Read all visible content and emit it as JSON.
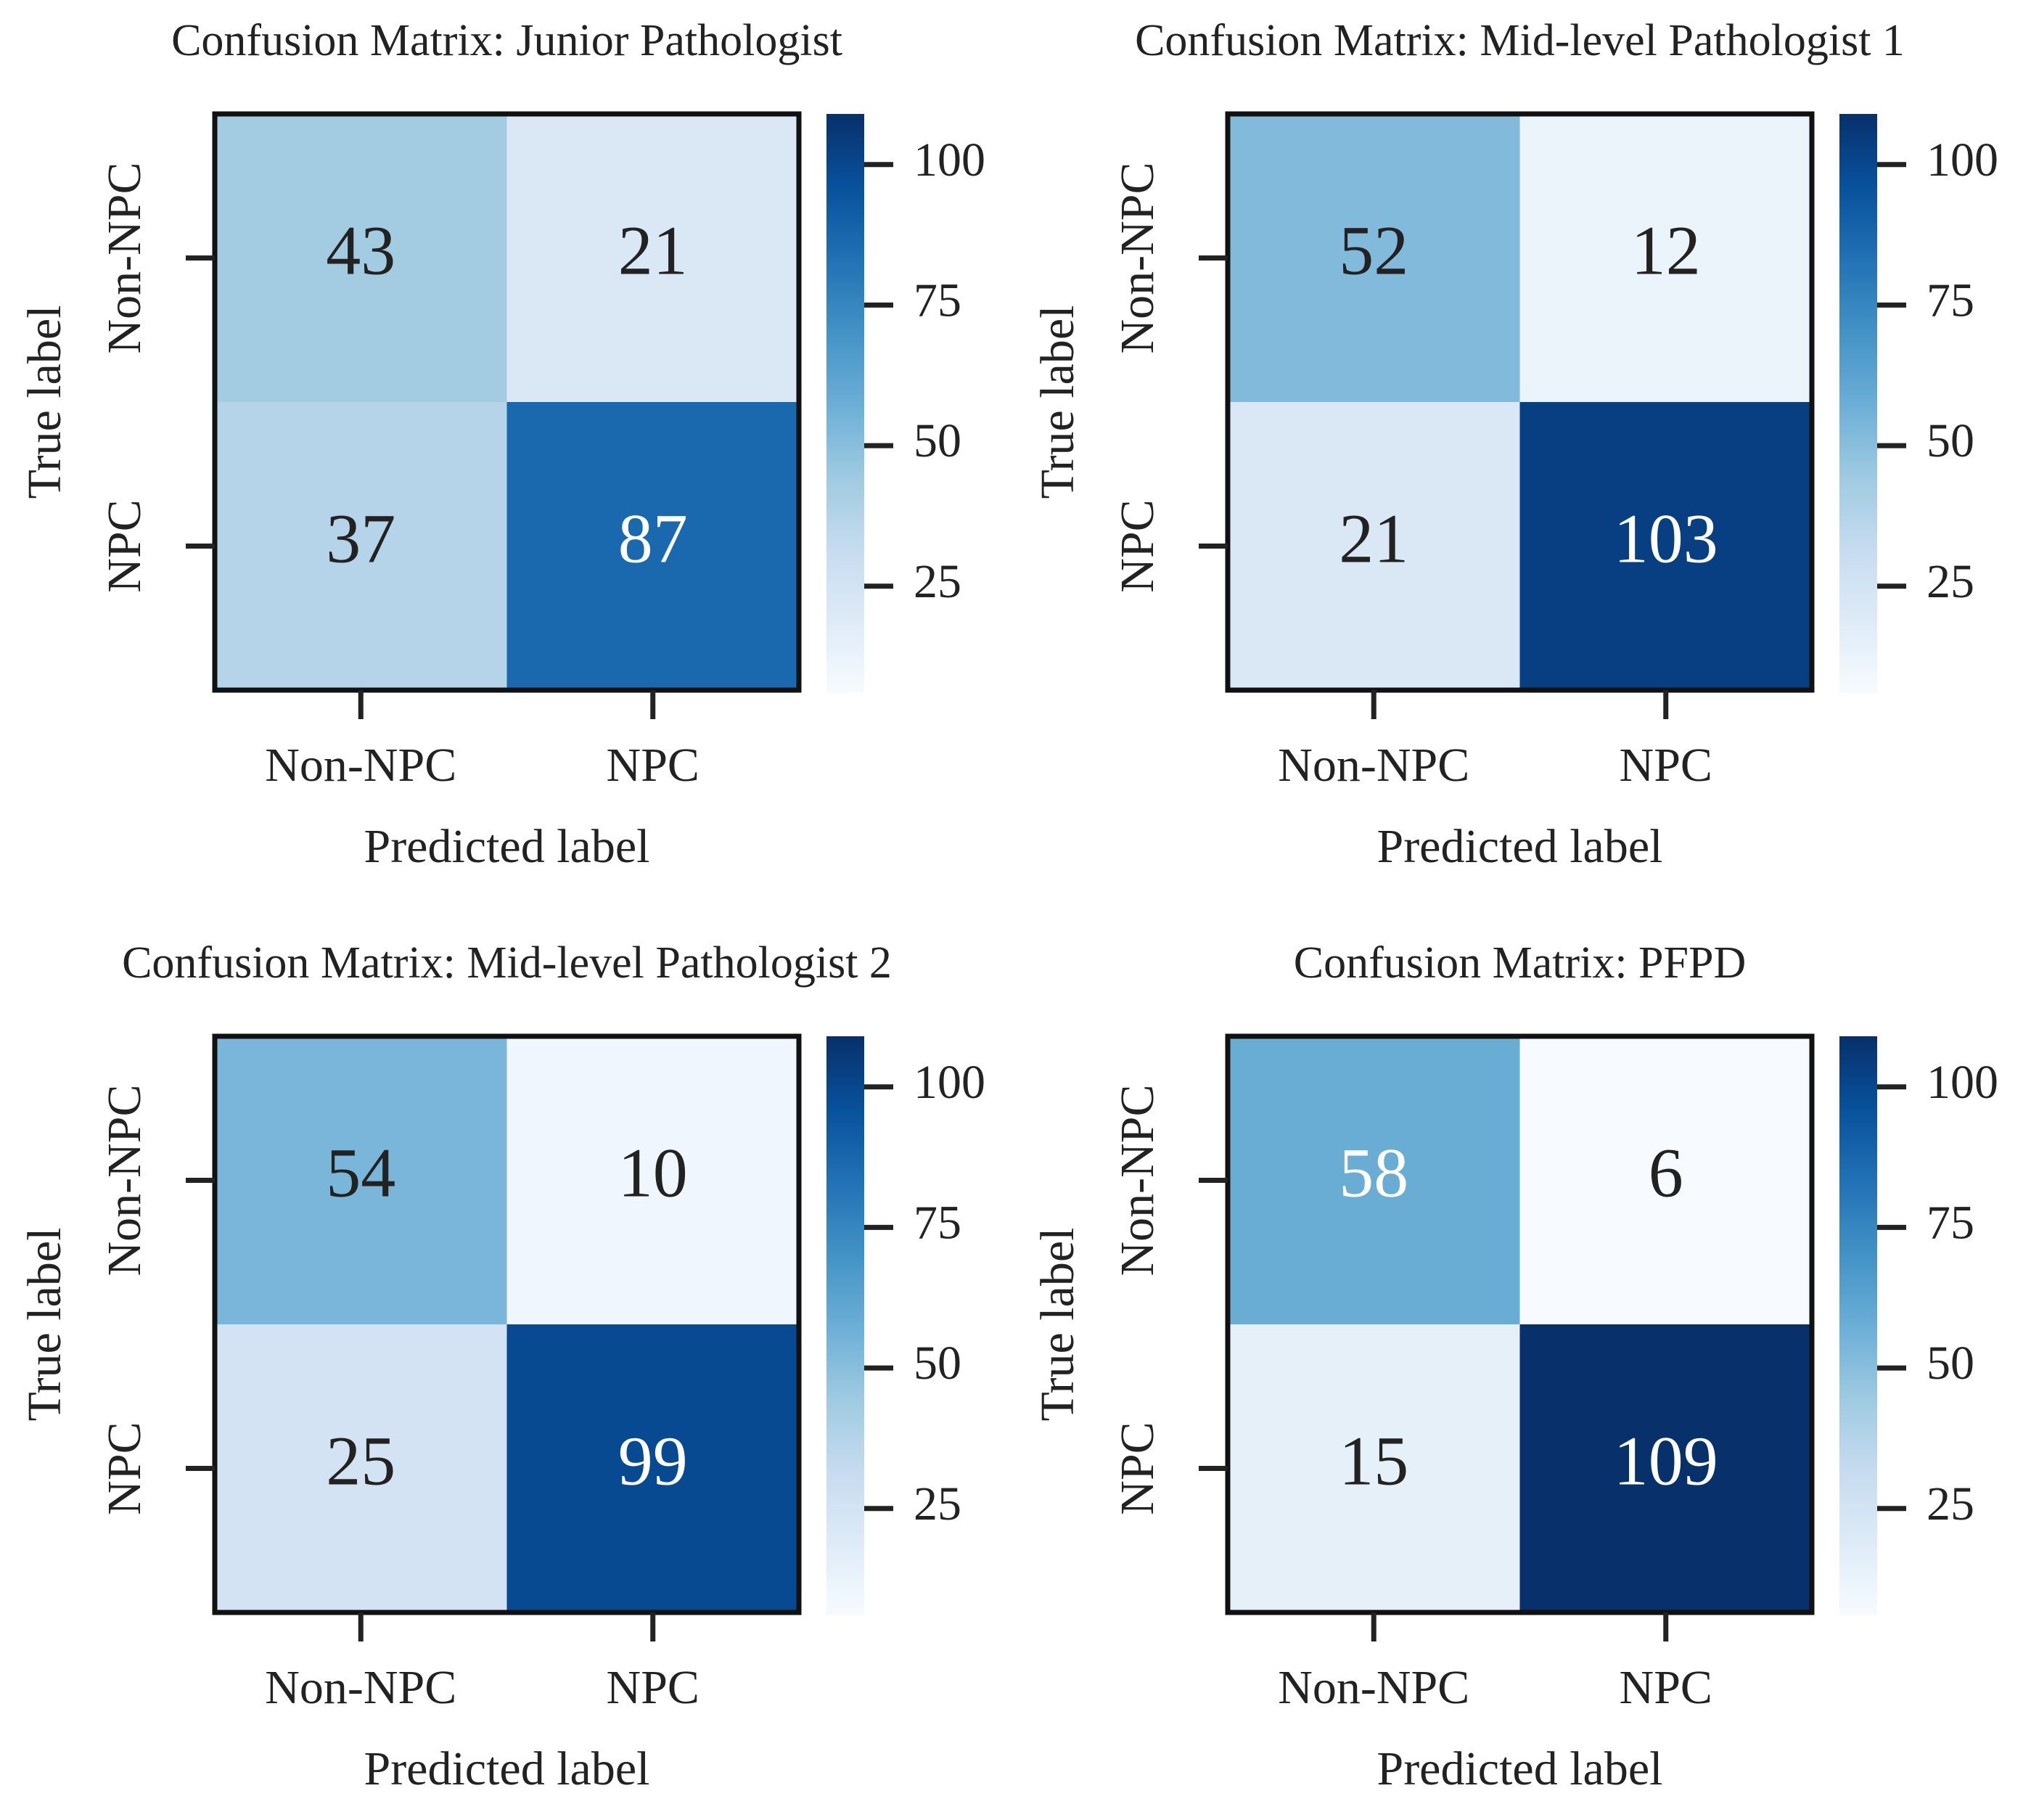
{
  "chart_data": [
    {
      "type": "heatmap",
      "title": "Confusion Matrix: Junior Pathologist",
      "xlabel": "Predicted label",
      "ylabel": "True label",
      "x_categories": [
        "Non-NPC",
        "NPC"
      ],
      "y_categories": [
        "Non-NPC",
        "NPC"
      ],
      "values": [
        [
          43,
          21
        ],
        [
          37,
          87
        ]
      ],
      "colormap": "Blues",
      "clim": [
        6,
        109
      ],
      "cbar_ticks": [
        25,
        50,
        75,
        100
      ]
    },
    {
      "type": "heatmap",
      "title": "Confusion Matrix: Mid-level Pathologist 1",
      "xlabel": "Predicted label",
      "ylabel": "True label",
      "x_categories": [
        "Non-NPC",
        "NPC"
      ],
      "y_categories": [
        "Non-NPC",
        "NPC"
      ],
      "values": [
        [
          52,
          12
        ],
        [
          21,
          103
        ]
      ],
      "colormap": "Blues",
      "clim": [
        6,
        109
      ],
      "cbar_ticks": [
        25,
        50,
        75,
        100
      ]
    },
    {
      "type": "heatmap",
      "title": "Confusion Matrix: Mid-level Pathologist 2",
      "xlabel": "Predicted label",
      "ylabel": "True label",
      "x_categories": [
        "Non-NPC",
        "NPC"
      ],
      "y_categories": [
        "Non-NPC",
        "NPC"
      ],
      "values": [
        [
          54,
          10
        ],
        [
          25,
          99
        ]
      ],
      "colormap": "Blues",
      "clim": [
        6,
        109
      ],
      "cbar_ticks": [
        25,
        50,
        75,
        100
      ]
    },
    {
      "type": "heatmap",
      "title": "Confusion Matrix: PFPD",
      "xlabel": "Predicted label",
      "ylabel": "True label",
      "x_categories": [
        "Non-NPC",
        "NPC"
      ],
      "y_categories": [
        "Non-NPC",
        "NPC"
      ],
      "values": [
        [
          58,
          6
        ],
        [
          15,
          109
        ]
      ],
      "colormap": "Blues",
      "clim": [
        6,
        109
      ],
      "cbar_ticks": [
        25,
        50,
        75,
        100
      ]
    }
  ]
}
